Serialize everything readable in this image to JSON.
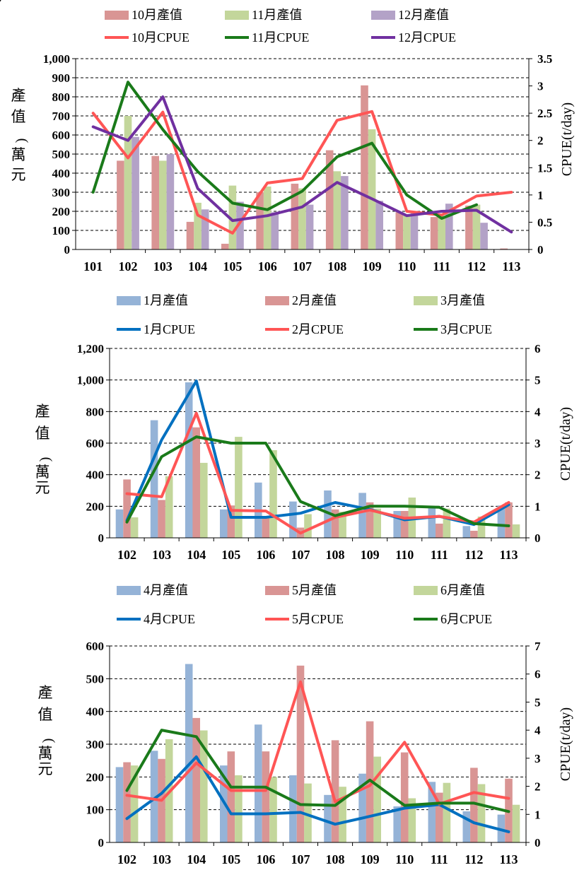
{
  "chart_data": [
    {
      "type": "bar",
      "ylabel_left": "產值(萬元)",
      "ylabel_right": "CPUE(t/day)",
      "categories": [
        "101",
        "102",
        "103",
        "104",
        "105",
        "106",
        "107",
        "108",
        "109",
        "110",
        "111",
        "112",
        "113"
      ],
      "y_left": {
        "range": [
          0,
          1000
        ],
        "ticks": [
          "0",
          "100",
          "200",
          "300",
          "400",
          "500",
          "600",
          "700",
          "800",
          "900",
          "1,000"
        ]
      },
      "y_right": {
        "range": [
          0,
          3.5
        ],
        "ticks": [
          "0",
          "0.5",
          "1",
          "1.5",
          "2",
          "2.5",
          "3",
          "3.5"
        ]
      },
      "bar_series": [
        {
          "name": "10月產值",
          "color": "#d99594",
          "values": [
            0,
            465,
            490,
            145,
            30,
            300,
            345,
            520,
            860,
            195,
            170,
            230,
            5
          ]
        },
        {
          "name": "11月產值",
          "color": "#c3d69b",
          "values": [
            0,
            700,
            465,
            245,
            335,
            330,
            320,
            410,
            630,
            185,
            175,
            235,
            0
          ]
        },
        {
          "name": "12月產值",
          "color": "#b3a2c7",
          "values": [
            0,
            590,
            500,
            210,
            250,
            195,
            235,
            385,
            255,
            200,
            240,
            140,
            0
          ]
        }
      ],
      "line_series": [
        {
          "name": "10月CPUE",
          "color": "#ff5555",
          "values": [
            2.5,
            1.68,
            2.52,
            0.63,
            0.3,
            1.22,
            1.3,
            2.37,
            2.53,
            0.7,
            0.63,
            0.98,
            1.05
          ]
        },
        {
          "name": "11月CPUE",
          "color": "#1a7a1a",
          "values": [
            1.05,
            3.07,
            2.2,
            1.43,
            0.85,
            0.73,
            1.07,
            1.7,
            1.95,
            1.0,
            0.57,
            0.82,
            null
          ]
        },
        {
          "name": "12月CPUE",
          "color": "#7030a0",
          "values": [
            2.25,
            2.0,
            2.8,
            1.12,
            0.53,
            0.62,
            0.78,
            1.23,
            0.93,
            0.62,
            0.7,
            0.72,
            0.32
          ]
        }
      ]
    },
    {
      "type": "bar",
      "ylabel_left": "產值(萬元)",
      "ylabel_right": "CPUE(t/day)",
      "categories": [
        "102",
        "103",
        "104",
        "105",
        "106",
        "107",
        "108",
        "109",
        "110",
        "111",
        "112",
        "113"
      ],
      "y_left": {
        "range": [
          0,
          1200
        ],
        "ticks": [
          "0",
          "200",
          "400",
          "600",
          "800",
          "1,000",
          "1,200"
        ]
      },
      "y_right": {
        "range": [
          0,
          6
        ],
        "ticks": [
          "0",
          "1",
          "2",
          "3",
          "4",
          "5",
          "6"
        ]
      },
      "bar_series": [
        {
          "name": "1月產值",
          "color": "#95b3d7",
          "values": [
            180,
            745,
            985,
            180,
            350,
            230,
            300,
            285,
            170,
            190,
            75,
            205
          ]
        },
        {
          "name": "2月產值",
          "color": "#d99594",
          "values": [
            370,
            240,
            700,
            205,
            130,
            65,
            180,
            225,
            170,
            90,
            45,
            225
          ]
        },
        {
          "name": "3月產值",
          "color": "#c3d69b",
          "values": [
            130,
            390,
            475,
            640,
            555,
            150,
            165,
            185,
            255,
            185,
            135,
            85
          ]
        }
      ],
      "line_series": [
        {
          "name": "1月CPUE",
          "color": "#0070c0",
          "values": [
            0.55,
            3.1,
            4.97,
            0.65,
            0.65,
            0.78,
            1.12,
            0.9,
            0.57,
            0.68,
            0.42,
            1.05
          ]
        },
        {
          "name": "2月CPUE",
          "color": "#ff5555",
          "values": [
            1.4,
            1.3,
            3.95,
            0.87,
            0.85,
            0.15,
            0.65,
            0.88,
            0.62,
            0.68,
            0.5,
            1.12
          ]
        },
        {
          "name": "3月CPUE",
          "color": "#1a7a1a",
          "values": [
            0.5,
            2.57,
            3.2,
            3.0,
            3.0,
            1.15,
            0.7,
            1.0,
            1.0,
            0.97,
            0.45,
            0.38
          ]
        }
      ]
    },
    {
      "type": "bar",
      "ylabel_left": "產值(萬元)",
      "ylabel_right": "CPUE(t/day)",
      "categories": [
        "102",
        "103",
        "104",
        "105",
        "106",
        "107",
        "108",
        "109",
        "110",
        "111",
        "112",
        "113"
      ],
      "y_left": {
        "range": [
          0,
          600
        ],
        "ticks": [
          "0",
          "100",
          "200",
          "300",
          "400",
          "500",
          "600"
        ]
      },
      "y_right": {
        "range": [
          0,
          7
        ],
        "ticks": [
          "0",
          "1",
          "2",
          "3",
          "4",
          "5",
          "6",
          "7"
        ]
      },
      "bar_series": [
        {
          "name": "4月產值",
          "color": "#95b3d7",
          "values": [
            230,
            280,
            545,
            235,
            360,
            205,
            145,
            210,
            110,
            185,
            95,
            85
          ]
        },
        {
          "name": "5月產值",
          "color": "#d99594",
          "values": [
            245,
            255,
            380,
            278,
            278,
            540,
            312,
            370,
            275,
            152,
            228,
            195
          ]
        },
        {
          "name": "6月產值",
          "color": "#c3d69b",
          "values": [
            235,
            315,
            342,
            205,
            200,
            180,
            170,
            262,
            135,
            182,
            178,
            115
          ]
        }
      ],
      "line_series": [
        {
          "name": "4月CPUE",
          "color": "#0070c0",
          "values": [
            0.85,
            1.75,
            3.05,
            1.02,
            1.02,
            1.07,
            0.65,
            0.93,
            1.22,
            1.35,
            0.7,
            0.38
          ]
        },
        {
          "name": "5月CPUE",
          "color": "#ff5555",
          "values": [
            1.68,
            1.5,
            2.83,
            1.85,
            1.85,
            5.72,
            1.45,
            2.03,
            3.57,
            1.37,
            1.78,
            1.57
          ]
        },
        {
          "name": "6月CPUE",
          "color": "#1a7a1a",
          "values": [
            1.85,
            4.0,
            3.77,
            1.97,
            1.97,
            1.35,
            1.32,
            2.22,
            1.32,
            1.4,
            1.4,
            1.1
          ]
        }
      ]
    }
  ]
}
